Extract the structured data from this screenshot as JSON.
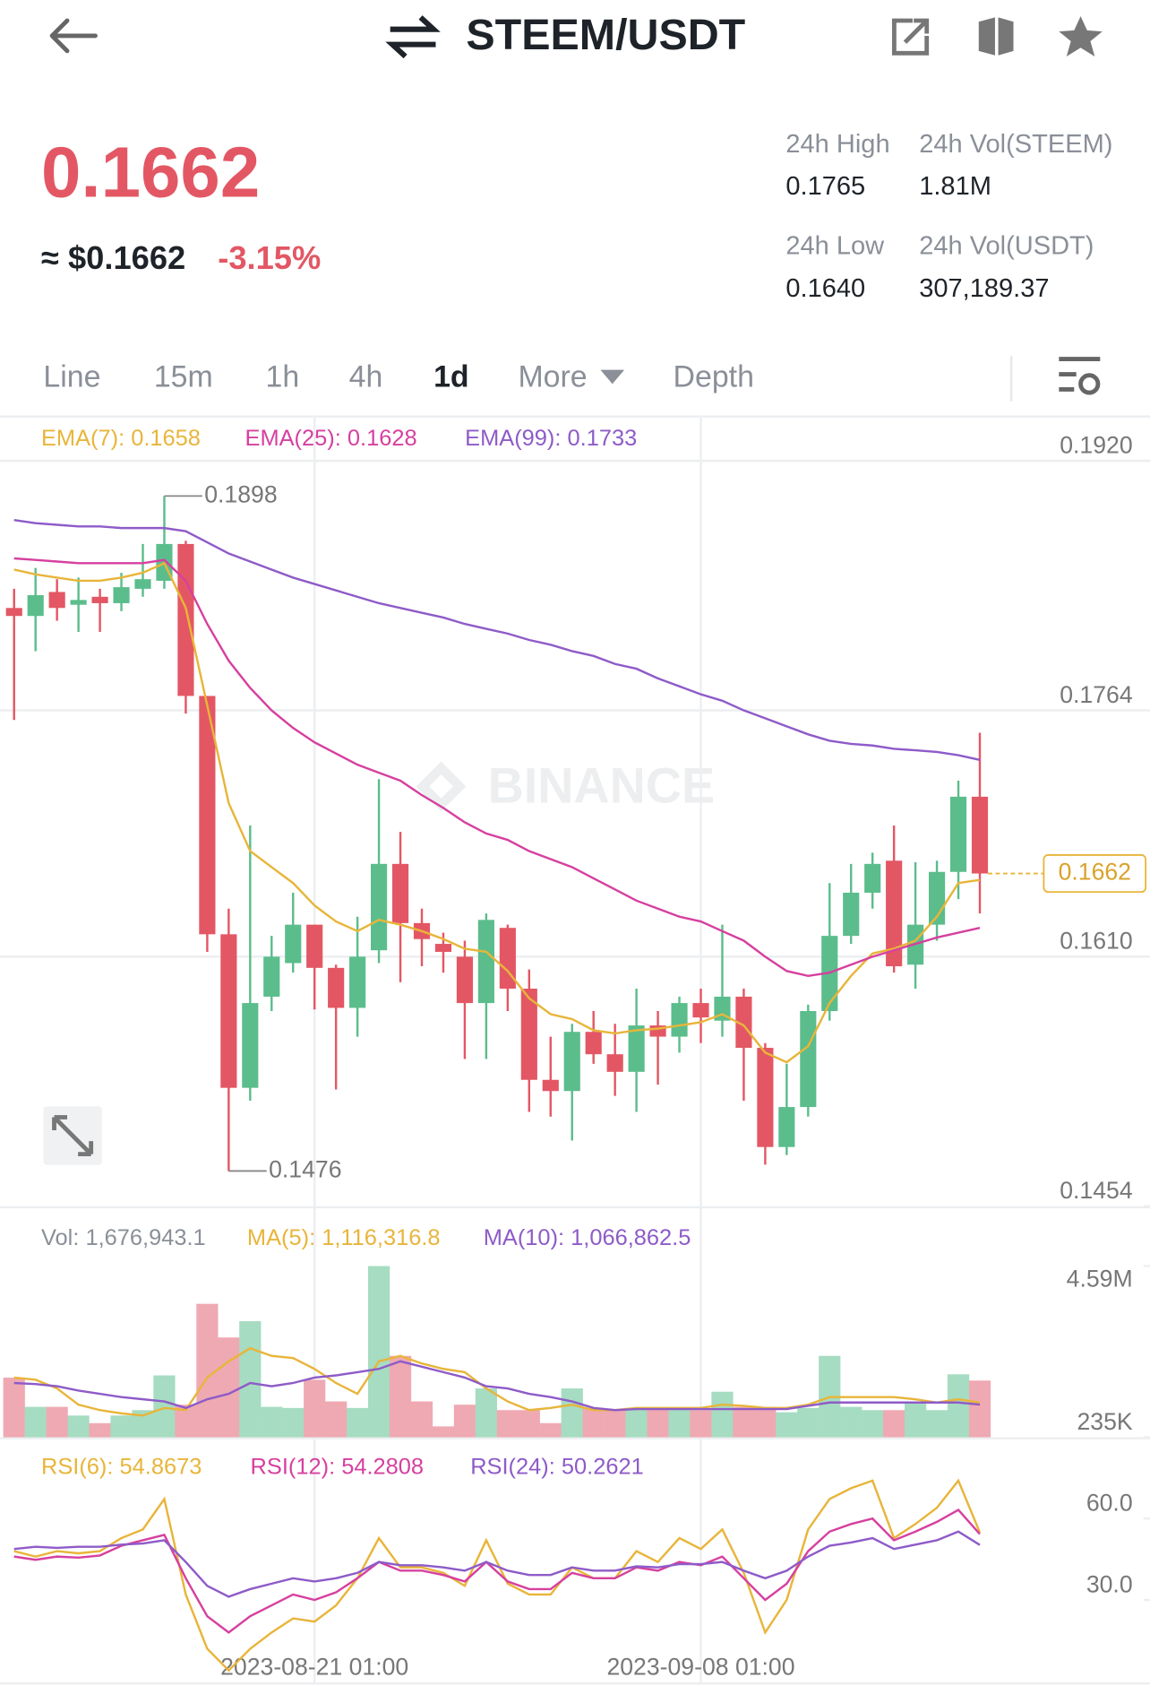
{
  "header": {
    "title": "STEEM/USDT"
  },
  "ticker": {
    "price": "0.1662",
    "usd": "≈ $0.1662",
    "change": "-3.15%",
    "stats": [
      {
        "label": "24h High",
        "value": "0.1765"
      },
      {
        "label": "24h Vol(STEEM)",
        "value": "1.81M"
      },
      {
        "label": "24h Low",
        "value": "0.1640"
      },
      {
        "label": "24h Vol(USDT)",
        "value": "307,189.37"
      }
    ]
  },
  "tabs": [
    "Line",
    "15m",
    "1h",
    "4h",
    "1d",
    "More",
    "Depth"
  ],
  "watermark": "BINANCE",
  "chart_data": [
    {
      "type": "candlestick",
      "categories": [
        null,
        null,
        null,
        null,
        null,
        null,
        null,
        null,
        null,
        null,
        null,
        null,
        null,
        null,
        "2023-08-21 01:00",
        null,
        null,
        null,
        null,
        null,
        null,
        null,
        null,
        null,
        null,
        null,
        null,
        null,
        null,
        null,
        null,
        null,
        "2023-09-08 01:00",
        null,
        null,
        null,
        null,
        null,
        null,
        null,
        null,
        null,
        null,
        null,
        null,
        null
      ],
      "open": [
        0.1828,
        0.1823,
        0.1838,
        0.183,
        0.1835,
        0.1831,
        0.184,
        0.1845,
        0.1868,
        0.1773,
        0.1624,
        0.1528,
        0.1585,
        0.1606,
        0.163,
        0.1603,
        0.1578,
        0.1614,
        0.1668,
        0.1631,
        0.1618,
        0.161,
        0.1581,
        0.1628,
        0.159,
        0.1533,
        0.1526,
        0.1563,
        0.1549,
        0.1538,
        0.1567,
        0.156,
        0.1581,
        0.157,
        0.1585,
        0.1553,
        0.1491,
        0.1516,
        0.1576,
        0.1623,
        0.165,
        0.167,
        0.1605,
        0.163,
        0.1663,
        0.171
      ],
      "high": [
        0.184,
        0.1853,
        0.1846,
        0.1847,
        0.184,
        0.185,
        0.1868,
        0.1898,
        0.187,
        0.1773,
        0.164,
        0.1692,
        0.1623,
        0.165,
        0.163,
        0.1605,
        0.1635,
        0.1721,
        0.1688,
        0.164,
        0.1625,
        0.162,
        0.1637,
        0.163,
        0.1602,
        0.156,
        0.1568,
        0.1576,
        0.1568,
        0.159,
        0.1576,
        0.1585,
        0.159,
        0.163,
        0.159,
        0.1556,
        0.1543,
        0.158,
        0.1656,
        0.1668,
        0.1675,
        0.1692,
        0.1669,
        0.167,
        0.172,
        0.175
      ],
      "low": [
        0.1758,
        0.1801,
        0.182,
        0.1813,
        0.1813,
        0.1826,
        0.1835,
        0.184,
        0.1762,
        0.1613,
        0.1476,
        0.152,
        0.1576,
        0.16,
        0.1577,
        0.1527,
        0.156,
        0.1606,
        0.1594,
        0.1604,
        0.16,
        0.1546,
        0.1546,
        0.1576,
        0.1513,
        0.151,
        0.1495,
        0.1543,
        0.1523,
        0.1513,
        0.153,
        0.155,
        0.1556,
        0.156,
        0.152,
        0.148,
        0.1486,
        0.151,
        0.157,
        0.1618,
        0.164,
        0.16,
        0.159,
        0.162,
        0.1646,
        0.1637
      ],
      "close": [
        0.1823,
        0.1836,
        0.1828,
        0.1833,
        0.1831,
        0.1841,
        0.1846,
        0.1868,
        0.1773,
        0.1624,
        0.1528,
        0.1581,
        0.161,
        0.163,
        0.1603,
        0.1578,
        0.161,
        0.1668,
        0.1631,
        0.1621,
        0.1613,
        0.1581,
        0.1633,
        0.159,
        0.1533,
        0.1526,
        0.1563,
        0.1549,
        0.1538,
        0.1567,
        0.156,
        0.1581,
        0.1572,
        0.1585,
        0.1553,
        0.1491,
        0.1516,
        0.1576,
        0.1623,
        0.165,
        0.1668,
        0.1604,
        0.163,
        0.1663,
        0.171,
        0.1662
      ],
      "up_color": "#5bbd8c",
      "down_color": "#e35764",
      "series": [
        {
          "name": "EMA(7)",
          "color": "#e8b53a",
          "values": [
            0.1852,
            0.1849,
            0.1847,
            0.1845,
            0.1845,
            0.1847,
            0.185,
            0.1856,
            0.1828,
            0.1767,
            0.1706,
            0.1676,
            0.1666,
            0.1656,
            0.1642,
            0.1632,
            0.1626,
            0.1633,
            0.163,
            0.1626,
            0.1621,
            0.1615,
            0.1613,
            0.1601,
            0.1584,
            0.1574,
            0.1571,
            0.1564,
            0.1562,
            0.1564,
            0.1565,
            0.1567,
            0.1569,
            0.1574,
            0.1567,
            0.155,
            0.1544,
            0.1554,
            0.1581,
            0.1598,
            0.1612,
            0.1615,
            0.162,
            0.1635,
            0.1656,
            0.1658
          ]
        },
        {
          "name": "EMA(25)",
          "color": "#d6409f",
          "values": [
            0.1859,
            0.1858,
            0.1857,
            0.1856,
            0.1856,
            0.1856,
            0.1856,
            0.1858,
            0.1845,
            0.1818,
            0.1795,
            0.1778,
            0.1764,
            0.1753,
            0.1744,
            0.1737,
            0.173,
            0.1725,
            0.172,
            0.1711,
            0.1703,
            0.1694,
            0.1687,
            0.1683,
            0.1676,
            0.1671,
            0.1666,
            0.1659,
            0.1652,
            0.1645,
            0.164,
            0.1635,
            0.1632,
            0.1626,
            0.162,
            0.161,
            0.1601,
            0.1598,
            0.16,
            0.1605,
            0.161,
            0.1614,
            0.1618,
            0.1622,
            0.1625,
            0.1628
          ]
        },
        {
          "name": "EMA(99)",
          "color": "#8e5bc8",
          "values": [
            0.1883,
            0.1881,
            0.188,
            0.1879,
            0.1879,
            0.1878,
            0.1878,
            0.1878,
            0.1876,
            0.1869,
            0.1862,
            0.1857,
            0.1852,
            0.1847,
            0.1843,
            0.1839,
            0.1835,
            0.1831,
            0.1828,
            0.1825,
            0.1822,
            0.1818,
            0.1815,
            0.1812,
            0.1808,
            0.1805,
            0.1801,
            0.1798,
            0.1793,
            0.179,
            0.1784,
            0.1779,
            0.1774,
            0.177,
            0.1764,
            0.1759,
            0.1754,
            0.1749,
            0.1745,
            0.1743,
            0.1742,
            0.174,
            0.1739,
            0.1738,
            0.1736,
            0.1733
          ]
        }
      ],
      "ylim": [
        0.1454,
        0.1947
      ],
      "yticks": [
        {
          "value": 0.192,
          "label": "0.1920"
        },
        0.1764,
        {
          "value": 0.161,
          "label": "0.1610"
        },
        0.1454
      ],
      "grid": true
    },
    {
      "type": "bar",
      "series": [
        {
          "name": "Vol",
          "up_color": "#a6dcc1",
          "down_color": "#efa9b2",
          "values": [
            1753000,
            1008000,
            1008000,
            787000,
            594000,
            787000,
            925000,
            1808000,
            1063000,
            3630000,
            2774000,
            3188000,
            1008000,
            980000,
            1698000,
            1146000,
            980000,
            4590000,
            2305000,
            1146000,
            511000,
            1063000,
            1477000,
            925000,
            925000,
            594000,
            1477000,
            980000,
            925000,
            980000,
            980000,
            980000,
            925000,
            1394000,
            1008000,
            1008000,
            870000,
            980000,
            2305000,
            1008000,
            925000,
            925000,
            1146000,
            925000,
            1836000,
            1676943.1
          ],
          "last_label": "1,676,943.1"
        },
        {
          "name": "MA(5)",
          "color": "#e8b53a",
          "values": [
            1753000,
            1698000,
            1477000,
            1063000,
            925000,
            842000,
            787000,
            980000,
            925000,
            1753000,
            2167000,
            2498000,
            2305000,
            2250000,
            1974000,
            1615000,
            1339000,
            2167000,
            2305000,
            2112000,
            1974000,
            1891000,
            1477000,
            1146000,
            925000,
            980000,
            1063000,
            925000,
            925000,
            980000,
            980000,
            980000,
            980000,
            1063000,
            1035000,
            980000,
            980000,
            1063000,
            1256000,
            1256000,
            1256000,
            1256000,
            1201000,
            1118000,
            1201000,
            1116316.8
          ],
          "last_label": "1,116,316.8"
        },
        {
          "name": "MA(10)",
          "color": "#8e5bc8",
          "values": [
            1615000,
            1587000,
            1532000,
            1422000,
            1339000,
            1256000,
            1201000,
            1146000,
            980000,
            1201000,
            1339000,
            1615000,
            1532000,
            1615000,
            1753000,
            1808000,
            1891000,
            1974000,
            2167000,
            2029000,
            1891000,
            1753000,
            1532000,
            1477000,
            1339000,
            1256000,
            1146000,
            980000,
            925000,
            953000,
            953000,
            953000,
            953000,
            953000,
            953000,
            953000,
            953000,
            1035000,
            1118000,
            1118000,
            1118000,
            1118000,
            1118000,
            1118000,
            1118000,
            1066862.5
          ],
          "last_label": "1,066,862.5"
        }
      ],
      "ylim": [
        235000,
        5755000
      ],
      "yticks": [
        {
          "value": 4590000,
          "label": "4.59M"
        },
        {
          "value": 235000,
          "label": "235K"
        }
      ]
    },
    {
      "type": "line",
      "series": [
        {
          "name": "RSI(6)",
          "color": "#e8b53a",
          "values": [
            48,
            46,
            48,
            47.2,
            48,
            52.8,
            56,
            67.2,
            32,
            12,
            4,
            12,
            18,
            23.2,
            22,
            28,
            38,
            52.8,
            42,
            42,
            40,
            35.2,
            52,
            36,
            32,
            32,
            42,
            38,
            38,
            48,
            44,
            52.8,
            48.8,
            56,
            40,
            18,
            30,
            56,
            67.2,
            71.2,
            74,
            52.8,
            58,
            64,
            74,
            54.8673
          ]
        },
        {
          "name": "RSI(12)",
          "color": "#d6409f",
          "values": [
            46,
            44.8,
            46,
            45.6,
            46.4,
            50,
            52,
            54,
            38,
            24,
            18,
            24,
            28,
            32,
            30,
            32.8,
            38,
            44,
            40.8,
            40.8,
            39.2,
            36.8,
            44,
            36.8,
            34,
            34,
            40,
            38,
            38,
            42,
            40.8,
            44,
            42.8,
            46,
            38,
            30,
            36,
            48,
            55.2,
            58,
            60,
            52,
            55.2,
            58.8,
            63.2,
            54.2808
          ]
        },
        {
          "name": "RSI(24)",
          "color": "#8e5bc8",
          "values": [
            48.8,
            49.6,
            49.2,
            49.6,
            49.6,
            50.4,
            50.8,
            52,
            44,
            35.2,
            31.2,
            34,
            36,
            38,
            36.8,
            38,
            40,
            44,
            42.8,
            42.8,
            42,
            40.8,
            44,
            40.8,
            39.2,
            39.2,
            42,
            40.8,
            40.8,
            42.4,
            42,
            43.2,
            43.2,
            44,
            40.8,
            38,
            40.8,
            46,
            50,
            51.2,
            52.8,
            48.8,
            50.4,
            52,
            55.2,
            50.2621
          ]
        }
      ],
      "ylim": [
        0,
        86
      ],
      "yticks": [
        {
          "value": 60,
          "label": "60.0"
        },
        {
          "value": 30,
          "label": "30.0"
        }
      ]
    }
  ]
}
